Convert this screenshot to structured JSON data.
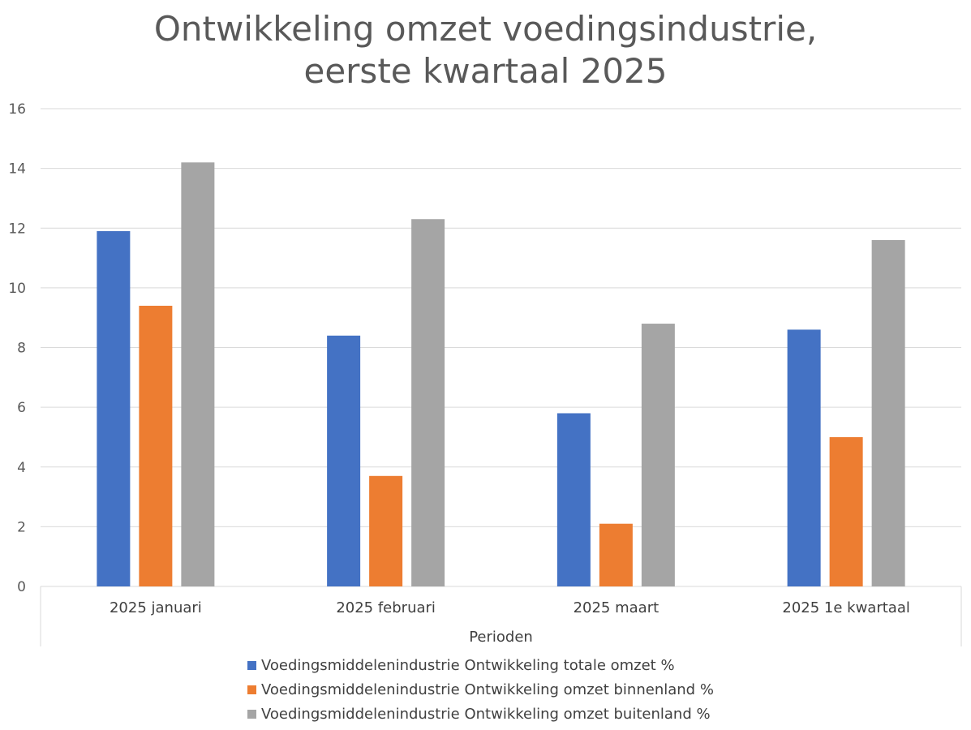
{
  "chart_data": {
    "type": "bar",
    "title_lines": [
      "Ontwikkeling omzet voedingsindustrie,",
      "eerste kwartaal 2025"
    ],
    "xlabel": "Perioden",
    "ylabel": "",
    "categories": [
      "2025 januari",
      "2025 februari",
      "2025 maart",
      "2025 1e kwartaal"
    ],
    "ylim": [
      0,
      16
    ],
    "yticks": [
      0,
      2,
      4,
      6,
      8,
      10,
      12,
      14,
      16
    ],
    "grid": true,
    "legend_position": "bottom",
    "series": [
      {
        "name": "Voedingsmiddelenindustrie Ontwikkeling totale omzet %",
        "color": "#4472C4",
        "values": [
          11.9,
          8.4,
          5.8,
          8.6
        ]
      },
      {
        "name": "Voedingsmiddelenindustrie Ontwikkeling omzet binnenland %",
        "color": "#ED7D31",
        "values": [
          9.4,
          3.7,
          2.1,
          5.0
        ]
      },
      {
        "name": "Voedingsmiddelenindustrie Ontwikkeling omzet buitenland %",
        "color": "#A5A5A5",
        "values": [
          14.2,
          12.3,
          8.8,
          11.6
        ]
      }
    ]
  }
}
